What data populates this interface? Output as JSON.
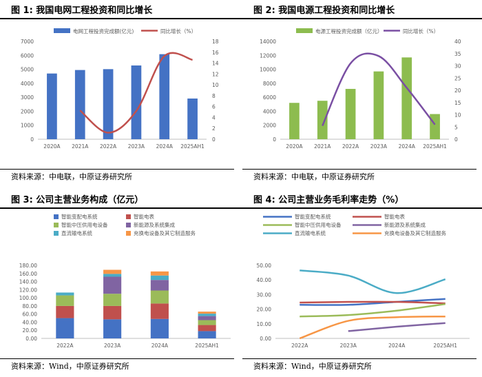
{
  "panels": [
    {
      "title": "图 1: 我国电网工程投资和同比增长",
      "source": "资料来源：中电联，中原证券研究所"
    },
    {
      "title": "图 2: 我国电源工程投资和同比增长",
      "source": "资料来源：中电联，中原证券研究所"
    },
    {
      "title": "图 3: 公司主营业务构成（亿元）",
      "source": "资料来源：Wind，中原证券研究所"
    },
    {
      "title": "图 4: 公司主营业务毛利率走势（%）",
      "source": "资料来源：Wind，中原证券研究所"
    }
  ],
  "chart_data": [
    {
      "type": "bar+line",
      "categories": [
        "2020A",
        "2021A",
        "2022A",
        "2023A",
        "2024A",
        "2025AH1"
      ],
      "bar_series": {
        "name": "电网工程投资完成额(亿元)",
        "values": [
          4700,
          4950,
          5012,
          5275,
          6083,
          2911
        ],
        "color": "#4472C4"
      },
      "line_series": {
        "name": "同比增长（%）",
        "values": [
          null,
          5.3,
          1.2,
          5.2,
          15.3,
          14.6
        ],
        "color": "#C0504D"
      },
      "ylim_left": [
        0,
        7000
      ],
      "yticks_left": [
        0,
        1000,
        2000,
        3000,
        4000,
        5000,
        6000,
        7000
      ],
      "ylim_right": [
        0,
        18
      ],
      "yticks_right": [
        0,
        2,
        4,
        6,
        8,
        10,
        12,
        14,
        16,
        18
      ]
    },
    {
      "type": "bar+line",
      "categories": [
        "2020A",
        "2021A",
        "2022A",
        "2023A",
        "2024A",
        "2025AH1"
      ],
      "bar_series": {
        "name": "电源工程投资完成额（亿元）",
        "values": [
          5200,
          5500,
          7200,
          9700,
          11700,
          3600
        ],
        "color": "#8DBC4F"
      },
      "line_series": {
        "name": "同比增长（%）",
        "values": [
          null,
          5.5,
          31,
          34,
          21,
          6
        ],
        "color": "#7A4FA3"
      },
      "ylim_left": [
        0,
        14000
      ],
      "yticks_left": [
        0,
        2000,
        4000,
        6000,
        8000,
        10000,
        12000,
        14000
      ],
      "ylim_right": [
        0,
        40
      ],
      "yticks_right": [
        0,
        5,
        10,
        15,
        20,
        25,
        30,
        35,
        40
      ]
    },
    {
      "type": "stacked-bar",
      "categories": [
        "2022A",
        "2023A",
        "2024A",
        "2025AH1"
      ],
      "series": [
        {
          "name": "智能变配电系统",
          "values": [
            50,
            47,
            48,
            18
          ],
          "color": "#4472C4"
        },
        {
          "name": "智能电表",
          "values": [
            30,
            33,
            38,
            15
          ],
          "color": "#C0504D"
        },
        {
          "name": "智能中压供用电设备",
          "values": [
            26,
            30,
            32,
            12
          ],
          "color": "#9BBB59"
        },
        {
          "name": "新能源及系统集成",
          "values": [
            0,
            42,
            26,
            10
          ],
          "color": "#8064A2"
        },
        {
          "name": "直流输电系统",
          "values": [
            7,
            7,
            11,
            6
          ],
          "color": "#4BACC6"
        },
        {
          "name": "充换电设备及其它制造服务",
          "values": [
            0,
            10,
            10,
            5
          ],
          "color": "#F79646"
        }
      ],
      "ylim": [
        0,
        180
      ],
      "yticks": [
        "0.00",
        "20.00",
        "40.00",
        "60.00",
        "80.00",
        "100.00",
        "120.00",
        "140.00",
        "160.00",
        "180.00"
      ]
    },
    {
      "type": "line",
      "categories": [
        "2022A",
        "2023A",
        "2024A",
        "2025AH1"
      ],
      "series": [
        {
          "name": "智能变配电系统",
          "values": [
            23,
            23,
            25,
            27
          ],
          "color": "#4472C4"
        },
        {
          "name": "智能电表",
          "values": [
            24.5,
            25,
            25,
            24
          ],
          "color": "#C0504D"
        },
        {
          "name": "智能中压供用电设备",
          "values": [
            15,
            16,
            19,
            23.5
          ],
          "color": "#9BBB59"
        },
        {
          "name": "新能源及系统集成",
          "values": [
            null,
            5,
            8,
            10.5
          ],
          "color": "#8064A2"
        },
        {
          "name": "直流输电系统",
          "values": [
            46.5,
            43,
            31,
            40.5
          ],
          "color": "#4BACC6"
        },
        {
          "name": "充换电设备及其它制造服务",
          "values": [
            0,
            12,
            14.5,
            15
          ],
          "color": "#F79646"
        }
      ],
      "ylim": [
        0,
        50
      ],
      "yticks": [
        "0.00",
        "10.00",
        "20.00",
        "30.00",
        "40.00",
        "50.00"
      ]
    }
  ]
}
